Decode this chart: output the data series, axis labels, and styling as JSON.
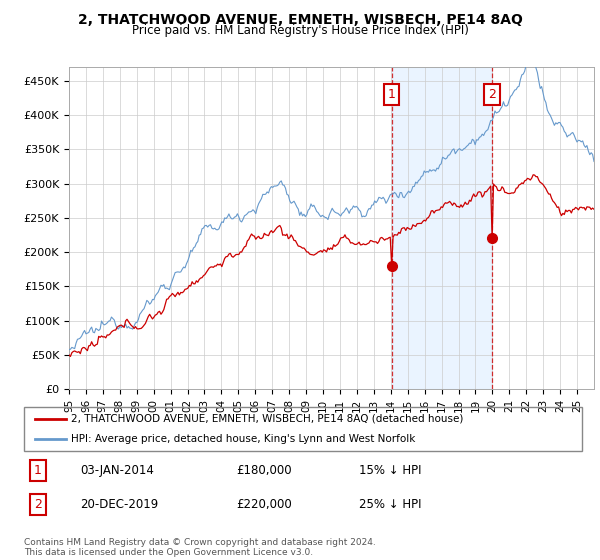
{
  "title": "2, THATCHWOOD AVENUE, EMNETH, WISBECH, PE14 8AQ",
  "subtitle": "Price paid vs. HM Land Registry's House Price Index (HPI)",
  "ylim": [
    0,
    470000
  ],
  "yticks": [
    0,
    50000,
    100000,
    150000,
    200000,
    250000,
    300000,
    350000,
    400000,
    450000
  ],
  "ytick_labels": [
    "£0",
    "£50K",
    "£100K",
    "£150K",
    "£200K",
    "£250K",
    "£300K",
    "£350K",
    "£400K",
    "£450K"
  ],
  "hpi_color": "#6699cc",
  "hpi_fill_color": "#ddeeff",
  "price_color": "#cc0000",
  "marker_color": "#cc0000",
  "vline_color": "#cc0000",
  "annotation_box_color": "#cc0000",
  "grid_color": "#cccccc",
  "background_color": "#ffffff",
  "legend_label_price": "2, THATCHWOOD AVENUE, EMNETH, WISBECH, PE14 8AQ (detached house)",
  "legend_label_hpi": "HPI: Average price, detached house, King's Lynn and West Norfolk",
  "sale1_date": "03-JAN-2014",
  "sale1_price": "£180,000",
  "sale1_note": "15% ↓ HPI",
  "sale2_date": "20-DEC-2019",
  "sale2_price": "£220,000",
  "sale2_note": "25% ↓ HPI",
  "footer": "Contains HM Land Registry data © Crown copyright and database right 2024.\nThis data is licensed under the Open Government Licence v3.0.",
  "sale1_year": 2014.03,
  "sale2_year": 2019.96,
  "sale1_price_val": 180000,
  "sale2_price_val": 220000
}
